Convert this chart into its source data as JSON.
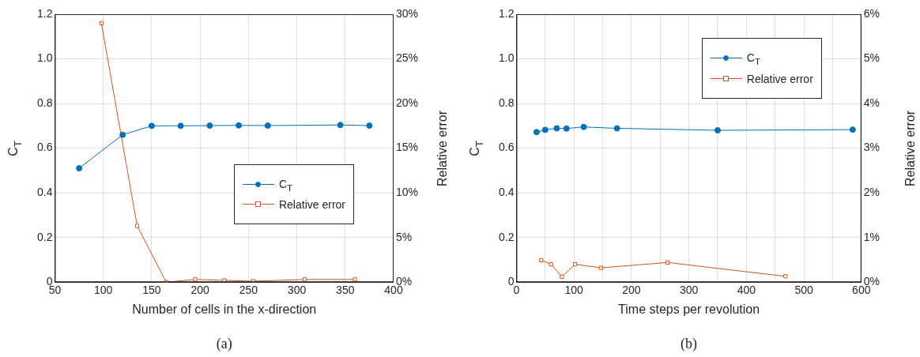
{
  "chart_data": [
    {
      "type": "line",
      "xlabel": "Number of cells in the x-direction",
      "ylabel": "C$_{T}$",
      "y2label": "Relative error",
      "xlim": [
        50,
        400
      ],
      "xticks": [
        50,
        100,
        150,
        200,
        250,
        300,
        350,
        400
      ],
      "ylim": [
        0,
        1.2
      ],
      "yticks": [
        0,
        0.2,
        0.4,
        0.6,
        0.8,
        {
          "value": 1,
          "label": "1.0"
        },
        1.2
      ],
      "y2lim": [
        0,
        30
      ],
      "y2ticks": [
        {
          "value": 0,
          "label": "0%"
        },
        {
          "value": 5,
          "label": "5%"
        },
        {
          "value": 10,
          "label": "10%"
        },
        {
          "value": 15,
          "label": "15%"
        },
        {
          "value": 20,
          "label": "20%"
        },
        {
          "value": 25,
          "label": "25%"
        },
        {
          "value": 30,
          "label": "30%"
        }
      ],
      "grid": true,
      "legend": "right",
      "annotations": [
        "(a)"
      ],
      "series": [
        {
          "name": "C$_{T}$",
          "color": "#0072bd",
          "marker": "circle",
          "x": [
            75,
            120,
            150,
            180,
            210,
            240,
            270,
            345,
            375
          ],
          "values": [
            0.51,
            0.66,
            0.7,
            0.7,
            0.701,
            0.702,
            0.701,
            0.704,
            0.701
          ]
        },
        {
          "name": "Relative error",
          "color": "#d95319",
          "marker": "square",
          "axis": "y2",
          "x": [
            98,
            135,
            165,
            195,
            225,
            255,
            308,
            360
          ],
          "values": [
            29.0,
            6.3,
            0,
            0.3,
            0.2,
            0.1,
            0.3,
            0.3
          ]
        }
      ]
    },
    {
      "type": "line",
      "xlabel": "Time steps per revolution",
      "ylabel": "C$_{T}$",
      "y2label": "Relative error",
      "xlim": [
        0,
        600
      ],
      "xticks": [
        0,
        {
          "value": 50,
          "label": null
        },
        100,
        {
          "value": 150,
          "label": null
        },
        200,
        {
          "value": 250,
          "label": null
        },
        300,
        {
          "value": 350,
          "label": null
        },
        400,
        {
          "value": 450,
          "label": null
        },
        500,
        {
          "value": 550,
          "label": null
        },
        600
      ],
      "ylim": [
        0,
        1.2
      ],
      "yticks": [
        0,
        0.2,
        0.4,
        0.6,
        0.8,
        {
          "value": 1,
          "label": "1.0"
        },
        1.2
      ],
      "y2lim": [
        0,
        6
      ],
      "y2ticks": [
        {
          "value": 0,
          "label": "0%"
        },
        {
          "value": 1,
          "label": "1%"
        },
        {
          "value": 2,
          "label": "2%"
        },
        {
          "value": 3,
          "label": "3%"
        },
        {
          "value": 4,
          "label": "4%"
        },
        {
          "value": 5,
          "label": "5%"
        },
        {
          "value": 6,
          "label": "6%"
        }
      ],
      "grid": true,
      "legend": "top right",
      "annotations": [
        "(b)"
      ],
      "series": [
        {
          "name": "C$_{T}$",
          "color": "#0072bd",
          "marker": "circle",
          "x": [
            35,
            50,
            70,
            87,
            117,
            175,
            350,
            585
          ],
          "values": [
            0.672,
            0.682,
            0.689,
            0.688,
            0.695,
            0.689,
            0.68,
            0.683
          ]
        },
        {
          "name": "Relative error",
          "color": "#d95319",
          "marker": "square",
          "axis": "y2",
          "x": [
            43,
            60,
            79,
            102,
            147,
            263,
            468
          ],
          "values": [
            0.49,
            0.4,
            0.12,
            0.4,
            0.32,
            0.44,
            0.13
          ]
        }
      ]
    }
  ]
}
